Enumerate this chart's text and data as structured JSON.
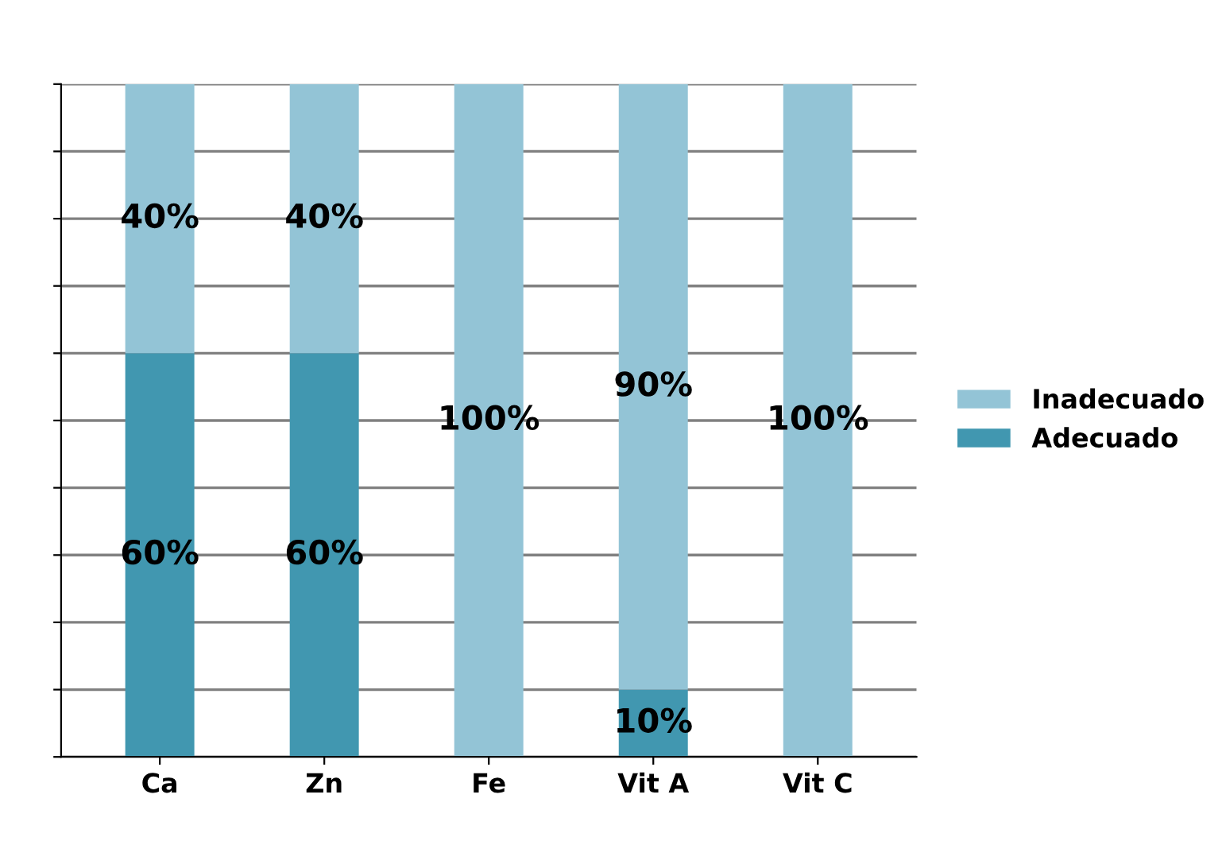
{
  "chart_data": {
    "type": "bar",
    "stacked": true,
    "categories": [
      "Ca",
      "Zn",
      "Fe",
      "Vit A",
      "Vit C"
    ],
    "series": [
      {
        "name": "Adecuado",
        "color": "#4197b0",
        "values": [
          60,
          60,
          0,
          10,
          0
        ],
        "value_labels": [
          "60%",
          "60%",
          null,
          "10%",
          null
        ]
      },
      {
        "name": "Inadecuado",
        "color": "#93c4d6",
        "values": [
          40,
          40,
          100,
          90,
          100
        ],
        "value_labels": [
          "40%",
          "40%",
          "100%",
          "90%",
          "100%"
        ]
      }
    ],
    "ylim": [
      0,
      100
    ],
    "yticks": [
      {
        "value": 0,
        "label": null
      },
      {
        "value": 10,
        "label": null
      },
      {
        "value": 20,
        "label": null
      },
      {
        "value": 30,
        "label": null
      },
      {
        "value": 40,
        "label": null
      },
      {
        "value": 50,
        "label": null
      },
      {
        "value": 60,
        "label": null
      },
      {
        "value": 70,
        "label": null
      },
      {
        "value": 80,
        "label": null
      },
      {
        "value": 90,
        "label": null
      },
      {
        "value": 100,
        "label": null
      }
    ],
    "tick_labels": "x",
    "grid": "y",
    "legend": "right"
  }
}
